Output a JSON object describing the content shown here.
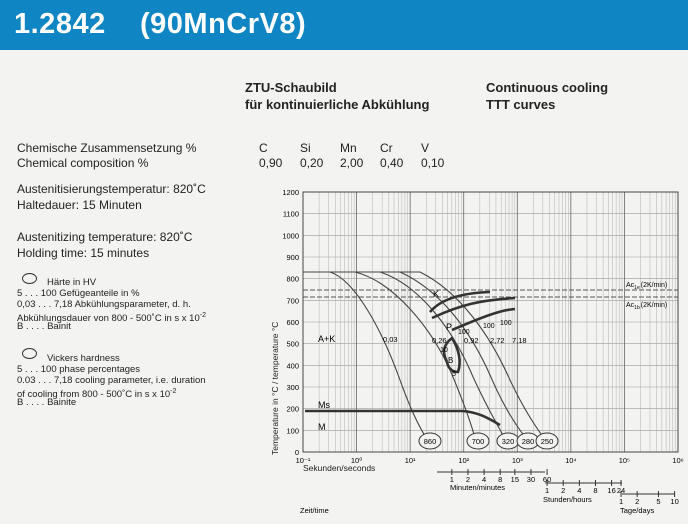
{
  "header": {
    "number": "1.2842",
    "name": "(90MnCrV8)"
  },
  "titles": {
    "de_line1": "ZTU-Schaubild",
    "de_line2": "für kontinuierliche Abkühlung",
    "en_line1": "Continuous cooling",
    "en_line2": "TTT curves"
  },
  "composition": {
    "label_de": "Chemische Zusammensetzung %",
    "label_en": "Chemical composition %",
    "elements": [
      "C",
      "Si",
      "Mn",
      "Cr",
      "V"
    ],
    "values": [
      "0,90",
      "0,20",
      "2,00",
      "0,40",
      "0,10"
    ]
  },
  "treatment": {
    "aust_de": "Austenitisierungstemperatur: 820˚C",
    "hold_de": "Haltedauer: 15 Minuten",
    "aust_en": "Austenitizing temperature: 820˚C",
    "hold_en": "Holding time: 15 minutes"
  },
  "legend_de": {
    "hardness": "Härte in HV",
    "l1": "5 . . . 100 Gefügeanteile in %",
    "l2": "0,03 . . . 7,18  Abkühlungsparameter, d. h.",
    "l3": "Abkühlungsdauer von 800 - 500˚C in s x 10",
    "l3_sup": "-2",
    "l4": "B . . . . Bainit"
  },
  "legend_en": {
    "hardness": "Vickers hardness",
    "l1": "5 . . . 100 phase percentages",
    "l2": "0.03 . . . 7,18  cooling parameter, i.e. duration",
    "l3": "of cooling from 800 - 500˚C in s x 10",
    "l3_sup": "-2",
    "l4": "B . . . . Bainite"
  },
  "chart": {
    "ylabel": "Temperature in °C / temperature °C",
    "y_ticks": [
      "0",
      "100",
      "200",
      "300",
      "400",
      "500",
      "600",
      "700",
      "800",
      "900",
      "1000",
      "1100",
      "1200"
    ],
    "x_ticks": [
      "10⁻¹",
      "10⁰",
      "10¹",
      "10²",
      "10³",
      "10⁴",
      "10⁵",
      "10⁶"
    ],
    "x_seconds_label": "Sekunden/seconds",
    "minutes_ticks": [
      "1",
      "2",
      "4",
      "8",
      "15",
      "30",
      "60"
    ],
    "minutes_label": "Minuten/minutes",
    "hours_ticks": [
      "1",
      "2",
      "4",
      "8",
      "16",
      "24"
    ],
    "hours_label": "Stunden/hours",
    "days_ticks": [
      "1",
      "2",
      "5",
      "10"
    ],
    "days_label": "Tage/days",
    "time_label": "Zeit/time",
    "ac1e": "Ac",
    "ac1e_sub": "1e",
    "ac1e_rate": "(2K/min)",
    "ac1b": "Ac",
    "ac1b_sub": "1b",
    "ac1b_rate": "(2K/min)",
    "region_ak": "A+K",
    "region_k": "K",
    "region_p": "P",
    "region_b": "B",
    "ms": "Ms",
    "m": "M",
    "cooling_params": [
      "0,03",
      "0,26",
      "0,92",
      "2,72",
      "7,18"
    ],
    "pct_labels": [
      "100",
      "100",
      "100",
      "10",
      "5"
    ],
    "hardness": [
      "860",
      "700",
      "320",
      "280",
      "250"
    ]
  },
  "chart_data": {
    "type": "line",
    "xscale": "log",
    "xlabel": "Sekunden/seconds",
    "ylabel": "Temperature in °C / temperature °C",
    "xlim": [
      0.1,
      1000000
    ],
    "ylim": [
      0,
      1200
    ],
    "austenitizing_temperature_C": 820,
    "cooling_parameters": [
      0.03,
      0.26,
      0.92,
      2.72,
      7.18
    ],
    "hardness_HV": [
      860,
      700,
      320,
      280,
      250
    ],
    "Ms_C": 200
  }
}
